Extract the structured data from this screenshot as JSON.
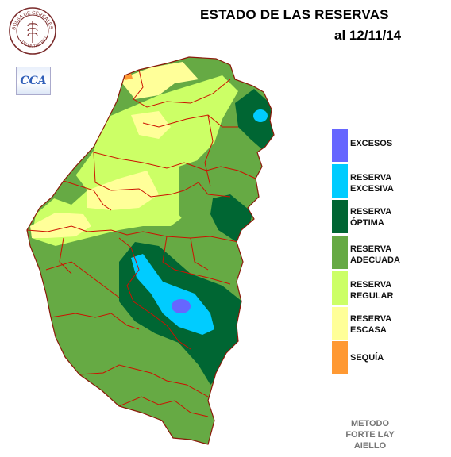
{
  "header": {
    "title": "ESTADO DE LAS RESERVAS",
    "subtitle": "al 12/11/14"
  },
  "logos": {
    "bolsa_text": "BOLSA DE CEREALES DE ENTRE RIOS",
    "cca_text": "CCA"
  },
  "legend": {
    "items": [
      {
        "label": "EXCESOS",
        "color": "#6666ff"
      },
      {
        "label": "RESERVA\nEXCESIVA",
        "color": "#00ccff"
      },
      {
        "label": "RESERVA\nÓPTIMA",
        "color": "#006633"
      },
      {
        "label": "RESERVA\nADECUADA",
        "color": "#66aa44"
      },
      {
        "label": "RESERVA\nREGULAR",
        "color": "#ccff66"
      },
      {
        "label": "RESERVA\nESCASA",
        "color": "#ffff99"
      },
      {
        "label": "SEQUÍA",
        "color": "#ff9933"
      }
    ]
  },
  "footer": {
    "method": "METODO\nFORTE LAY\nAIELLO"
  }
}
